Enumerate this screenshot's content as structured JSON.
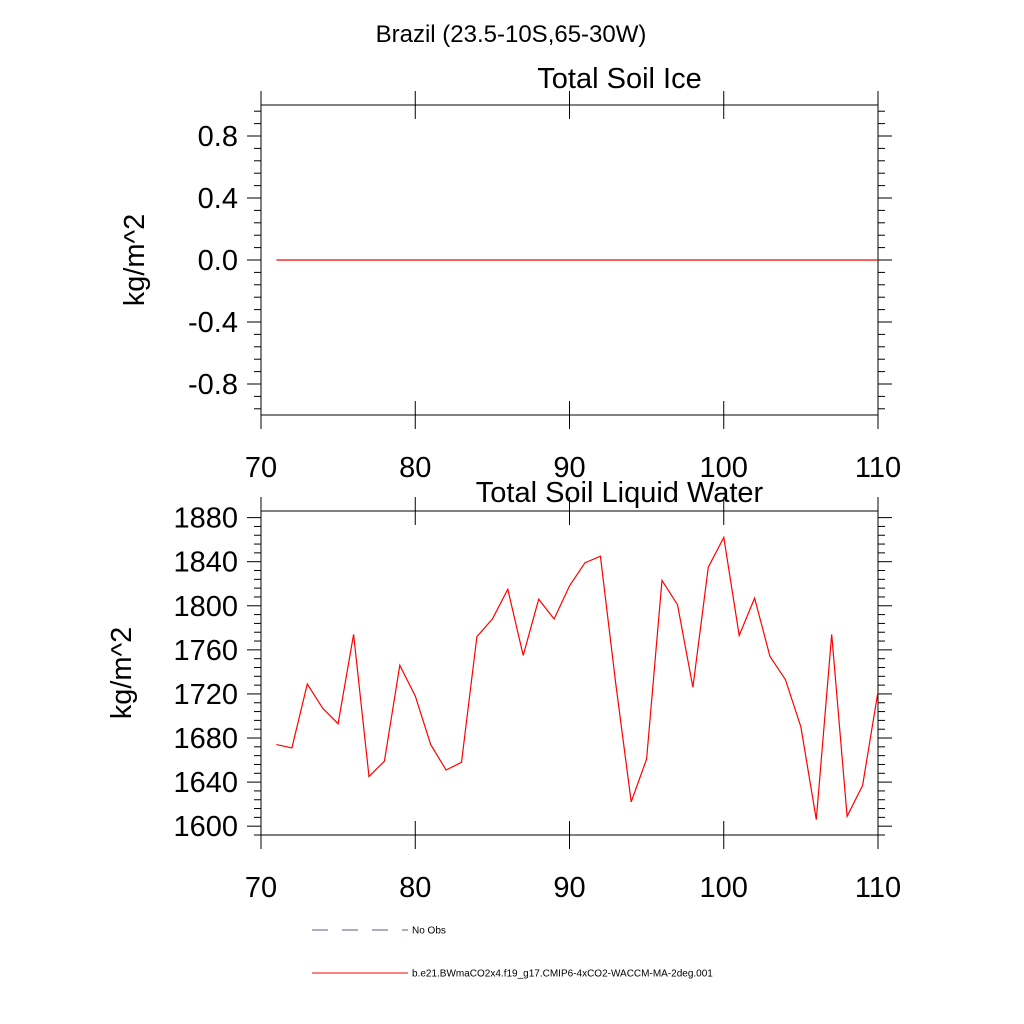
{
  "suptitle": "Brazil (23.5-10S,65-30W)",
  "chart_data": [
    {
      "type": "line",
      "title": "Total Soil Ice",
      "ylabel": "kg/m^2",
      "xlabel": "",
      "xlim": [
        70,
        110
      ],
      "ylim": [
        -1.0,
        1.0
      ],
      "xticks": [
        70,
        80,
        90,
        100,
        110
      ],
      "yticks": [
        -0.8,
        -0.4,
        0.0,
        0.4,
        0.8
      ],
      "ytick_labels": [
        "-0.8",
        "-0.4",
        "0.0",
        "0.4",
        "0.8"
      ],
      "grid": false,
      "series": [
        {
          "name": "b.e21.BWmaCO2x4.f19_g17.CMIP6-4xCO2-WACCM-MA-2deg.001",
          "color": "#ff0000",
          "x": [
            71,
            72,
            73,
            74,
            75,
            76,
            77,
            78,
            79,
            80,
            81,
            82,
            83,
            84,
            85,
            86,
            87,
            88,
            89,
            90,
            91,
            92,
            93,
            94,
            95,
            96,
            97,
            98,
            99,
            100,
            101,
            102,
            103,
            104,
            105,
            106,
            107,
            108,
            109,
            110
          ],
          "y": [
            0,
            0,
            0,
            0,
            0,
            0,
            0,
            0,
            0,
            0,
            0,
            0,
            0,
            0,
            0,
            0,
            0,
            0,
            0,
            0,
            0,
            0,
            0,
            0,
            0,
            0,
            0,
            0,
            0,
            0,
            0,
            0,
            0,
            0,
            0,
            0,
            0,
            0,
            0,
            0
          ]
        }
      ]
    },
    {
      "type": "line",
      "title": "Total Soil Liquid Water",
      "ylabel": "kg/m^2",
      "xlabel": "",
      "xlim": [
        70,
        110
      ],
      "ylim": [
        1592,
        1886
      ],
      "xticks": [
        70,
        80,
        90,
        100,
        110
      ],
      "yticks": [
        1600,
        1640,
        1680,
        1720,
        1760,
        1800,
        1840,
        1880
      ],
      "ytick_labels": [
        "1600",
        "1640",
        "1680",
        "1720",
        "1760",
        "1800",
        "1840",
        "1880"
      ],
      "grid": false,
      "series": [
        {
          "name": "b.e21.BWmaCO2x4.f19_g17.CMIP6-4xCO2-WACCM-MA-2deg.001",
          "color": "#ff0000",
          "x": [
            71,
            72,
            73,
            74,
            75,
            76,
            77,
            78,
            79,
            80,
            81,
            82,
            83,
            84,
            85,
            86,
            87,
            88,
            89,
            90,
            91,
            92,
            93,
            94,
            95,
            96,
            97,
            98,
            99,
            100,
            101,
            102,
            103,
            104,
            105,
            106,
            107,
            108,
            109,
            110
          ],
          "y": [
            1674,
            1671,
            1729,
            1707,
            1693,
            1774,
            1645,
            1659,
            1746,
            1718,
            1674,
            1651,
            1658,
            1772,
            1788,
            1815,
            1755,
            1806,
            1788,
            1818,
            1839,
            1845,
            1729,
            1622,
            1661,
            1823,
            1801,
            1726,
            1835,
            1862,
            1773,
            1807,
            1754,
            1733,
            1690,
            1606,
            1774,
            1609,
            1637,
            1722
          ]
        }
      ]
    }
  ],
  "legend": [
    {
      "label": "No Obs",
      "style": "dashed",
      "color": "#5a5a8a"
    },
    {
      "label": "b.e21.BWmaCO2x4.f19_g17.CMIP6-4xCO2-WACCM-MA-2deg.001",
      "style": "solid",
      "color": "#ff0000"
    }
  ]
}
